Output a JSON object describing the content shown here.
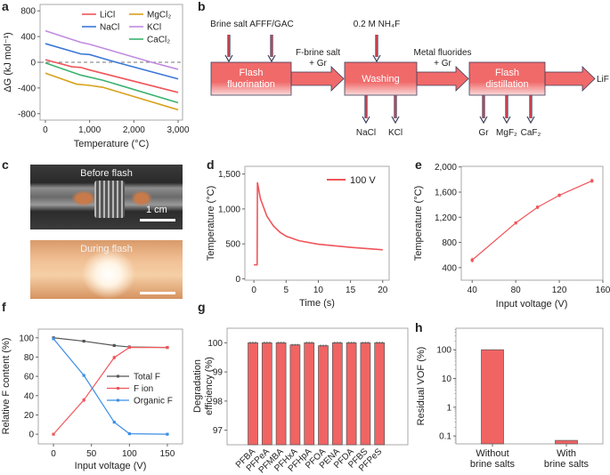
{
  "panel_labels": {
    "a": "a",
    "b": "b",
    "c": "c",
    "d": "d",
    "e": "e",
    "f": "f",
    "g": "g",
    "h": "h"
  },
  "diagram_b": {
    "inputs": [
      "Brine salt",
      "AFFF/GAC",
      "0.2 M NH₄F"
    ],
    "boxes": [
      [
        "Flash",
        "fluorination"
      ],
      [
        "Washing"
      ],
      [
        "Flash",
        "distillation"
      ]
    ],
    "transfer_1": [
      "F-brine salt",
      "+ Gr"
    ],
    "transfer_2": [
      "Metal fluorides",
      "+ Gr"
    ],
    "product": "LiF",
    "washing_outputs": [
      "NaCl",
      "KCl"
    ],
    "distillation_outputs": [
      "Gr",
      "MgF₂",
      "CaF₂"
    ],
    "colors": {
      "box": "#f06a6a",
      "arrow": "#e8404a",
      "outline": "#3a3f5c"
    }
  },
  "photos_c": {
    "before_label": "Before flash",
    "during_label": "During flash",
    "scale_label": "1 cm"
  },
  "chart_data": [
    {
      "id": "a",
      "type": "line",
      "xlabel": "Temperature (°C)",
      "ylabel": "ΔG (kJ mol⁻¹)",
      "xlim": [
        -120,
        3100
      ],
      "ylim": [
        -900,
        900
      ],
      "xticks": [
        0,
        1000,
        2000,
        3000
      ],
      "xtick_labels": [
        "0",
        "1,000",
        "2,000",
        "3,000"
      ],
      "yticks": [
        800,
        400,
        0,
        -400,
        -800
      ],
      "ytick_labels": [
        "800",
        "400",
        "0",
        "-400",
        "-800"
      ],
      "reference_line": {
        "y": 0,
        "style": "dashed"
      },
      "legend": "top-right",
      "series": [
        {
          "name": "LiCl",
          "color": "#f0555a",
          "x": [
            0,
            600,
            800,
            1000,
            3000
          ],
          "y": [
            40,
            -70,
            -80,
            -120,
            -470
          ]
        },
        {
          "name": "MgCl₂",
          "color": "#d9a21b",
          "x": [
            0,
            700,
            1000,
            1300,
            3000
          ],
          "y": [
            -170,
            -340,
            -360,
            -390,
            -740
          ]
        },
        {
          "name": "NaCl",
          "color": "#3a78d8",
          "x": [
            0,
            800,
            1000,
            1600,
            3000
          ],
          "y": [
            290,
            130,
            120,
            0,
            -260
          ]
        },
        {
          "name": "KCl",
          "color": "#c08be0",
          "x": [
            0,
            800,
            1000,
            2400,
            3000
          ],
          "y": [
            490,
            310,
            280,
            0,
            -110
          ]
        },
        {
          "name": "CaCl₂",
          "color": "#3bb36f",
          "x": [
            0,
            800,
            1300,
            3000
          ],
          "y": [
            -10,
            -200,
            -280,
            -630
          ]
        }
      ]
    },
    {
      "id": "d",
      "type": "line",
      "xlabel": "Time (s)",
      "ylabel": "Temperature (°C)",
      "xlim": [
        -1.4,
        21
      ],
      "ylim": [
        -20,
        1610
      ],
      "xticks": [
        0,
        5,
        10,
        15,
        20
      ],
      "xtick_labels": [
        "0",
        "5",
        "10",
        "15",
        "20"
      ],
      "yticks": [
        0,
        500,
        1000,
        1500
      ],
      "ytick_labels": [
        "0",
        "500",
        "1,000",
        "1,500"
      ],
      "legend": "top-right",
      "series": [
        {
          "name": "100 V",
          "color": "#f0555a",
          "x": [
            0,
            0.5,
            0.55,
            1,
            2,
            3,
            4,
            5,
            7,
            10,
            15,
            20
          ],
          "y": [
            200,
            200,
            1380,
            1150,
            900,
            760,
            670,
            610,
            545,
            495,
            450,
            415
          ]
        }
      ]
    },
    {
      "id": "e",
      "type": "line",
      "xlabel": "Input voltage (V)",
      "ylabel": "Temperature (°C)",
      "xlim": [
        30,
        160
      ],
      "ylim": [
        200,
        2010
      ],
      "xticks": [
        40,
        80,
        120,
        160
      ],
      "xtick_labels": [
        "40",
        "80",
        "120",
        "160"
      ],
      "yticks": [
        400,
        800,
        1200,
        1600,
        2000
      ],
      "ytick_labels": [
        "400",
        "800",
        "1,200",
        "1,600",
        "2,000"
      ],
      "series": [
        {
          "color": "#f0555a",
          "x": [
            40,
            80,
            100,
            120,
            150
          ],
          "y": [
            520,
            1110,
            1360,
            1550,
            1780
          ],
          "err": [
            40,
            25,
            30,
            30,
            35
          ]
        }
      ]
    },
    {
      "id": "f",
      "type": "line",
      "xlabel": "Input voltage (V)",
      "ylabel": "Relative F content (%)",
      "xlim": [
        -20,
        170
      ],
      "ylim": [
        -10,
        109
      ],
      "xticks": [
        0,
        50,
        100,
        150
      ],
      "xtick_labels": [
        "0",
        "50",
        "100",
        "150"
      ],
      "yticks": [
        0,
        20,
        40,
        60,
        80,
        100
      ],
      "ytick_labels": [
        "0",
        "20",
        "40",
        "60",
        "80",
        "100"
      ],
      "legend": "center-right",
      "series": [
        {
          "name": "Total F",
          "color": "#555555",
          "x": [
            0,
            40,
            80,
            100,
            150
          ],
          "y": [
            100,
            96.5,
            92,
            90.5,
            90
          ],
          "err": [
            1.2,
            1,
            1.5,
            1,
            1
          ]
        },
        {
          "name": "F ion",
          "color": "#f0555a",
          "x": [
            0,
            40,
            80,
            100,
            150
          ],
          "y": [
            0,
            35.5,
            79.5,
            90,
            90
          ],
          "err": [
            0.5,
            2,
            2,
            1,
            1
          ]
        },
        {
          "name": "Organic F",
          "color": "#3a8ee6",
          "x": [
            0,
            40,
            80,
            100,
            150
          ],
          "y": [
            99,
            61,
            12.5,
            0.5,
            0
          ],
          "err": [
            1,
            0.5,
            0.5,
            0.3,
            0.3
          ]
        }
      ]
    },
    {
      "id": "g",
      "type": "bar",
      "ylabel": [
        "Degradation",
        "efficiency (%)"
      ],
      "categories": [
        "PFBA",
        "PFPeA",
        "PFMBA",
        "PFHxA",
        "PFHpA",
        "PFOA",
        "PENA",
        "PFDA",
        "PFBS",
        "PFPeS"
      ],
      "values": [
        100,
        100,
        100,
        99.93,
        100,
        99.9,
        100,
        100,
        100,
        100
      ],
      "ylim": [
        96.5,
        100.5
      ],
      "yticks": [
        97,
        98,
        99,
        100
      ],
      "ytick_labels": [
        "97",
        "98",
        "99",
        "100"
      ],
      "bar_color": "#f06464"
    },
    {
      "id": "h",
      "type": "bar",
      "ylabel": "Residual VOF (%)",
      "yscale": "log",
      "categories": [
        [
          "Without",
          "brine salts"
        ],
        [
          "With",
          "brine salts"
        ]
      ],
      "values": [
        100,
        0.07
      ],
      "ylim": [
        0.053,
        560
      ],
      "yticks": [
        0.1,
        1,
        10,
        100
      ],
      "ytick_labels": [
        "0.1",
        "1",
        "10",
        "100"
      ],
      "bar_color": "#f06464"
    }
  ]
}
